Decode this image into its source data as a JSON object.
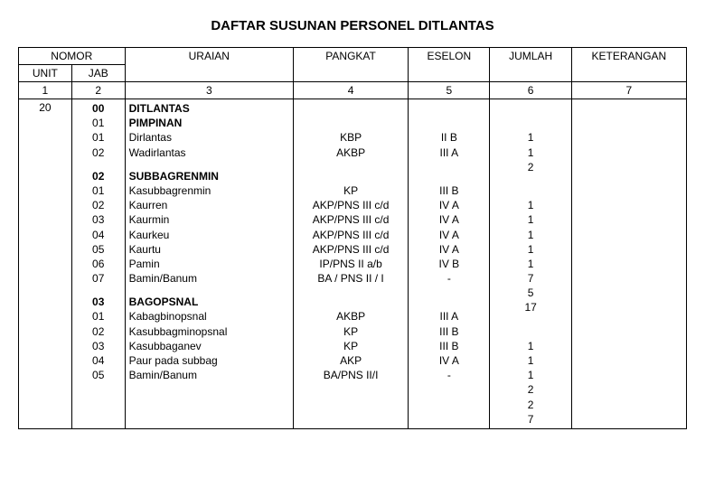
{
  "title": "DAFTAR SUSUNAN PERSONEL DITLANTAS",
  "headers": {
    "nomor": "NOMOR",
    "unit": "UNIT",
    "jab": "JAB",
    "uraian": "URAIAN",
    "pangkat": "PANGKAT",
    "eselon": "ESELON",
    "jumlah": "JUMLAH",
    "keterangan": "KETERANGAN"
  },
  "numrow": {
    "unit": "1",
    "jab": "2",
    "uraian": "3",
    "pangkat": "4",
    "eselon": "5",
    "jumlah": "6",
    "keterangan": "7"
  },
  "unit_val": "20",
  "sections": [
    {
      "jab": [
        "00",
        "01",
        "01",
        "02"
      ],
      "uraian_head": "DITLANTAS",
      "uraian": [
        "PIMPINAN",
        "Dirlantas",
        "Wadirlantas"
      ],
      "pangkat": [
        "",
        "",
        "KBP",
        "AKBP"
      ],
      "eselon": [
        "",
        "",
        "II B",
        "III A"
      ],
      "jumlah": [
        "",
        "",
        "1",
        "1",
        "2"
      ]
    },
    {
      "jab": [
        "02",
        "01",
        "02",
        "03",
        "04",
        "05",
        "06",
        "07"
      ],
      "uraian_head": "SUBBAGRENMIN",
      "uraian": [
        "Kasubbagrenmin",
        "Kaurren",
        "Kaurmin",
        "Kaurkeu",
        "Kaurtu",
        "Pamin",
        "Bamin/Banum"
      ],
      "pangkat": [
        "",
        "KP",
        "AKP/PNS III c/d",
        "AKP/PNS III c/d",
        "AKP/PNS III c/d",
        "AKP/PNS III c/d",
        "IP/PNS II a/b",
        "BA / PNS II / I"
      ],
      "eselon": [
        "",
        "III B",
        "IV A",
        "IV A",
        "IV A",
        "IV A",
        "IV B",
        "-"
      ],
      "jumlah": [
        "",
        "1",
        "1",
        "1",
        "1",
        "1",
        "7",
        "5",
        "17"
      ]
    },
    {
      "jab": [
        "03",
        "01",
        "02",
        "03",
        "04",
        "05"
      ],
      "uraian_head": "BAGOPSNAL",
      "uraian": [
        "Kabagbinopsnal",
        "Kasubbagminopsnal",
        "Kasubbaganev",
        "Paur pada subbag",
        "Bamin/Banum"
      ],
      "pangkat": [
        "",
        "AKBP",
        "KP",
        "KP",
        "AKP",
        "BA/PNS II/I"
      ],
      "eselon": [
        "",
        "III A",
        "III B",
        "III B",
        "IV A",
        "-"
      ],
      "jumlah": [
        "",
        "1",
        "1",
        "1",
        "2",
        "2",
        "7"
      ]
    }
  ]
}
